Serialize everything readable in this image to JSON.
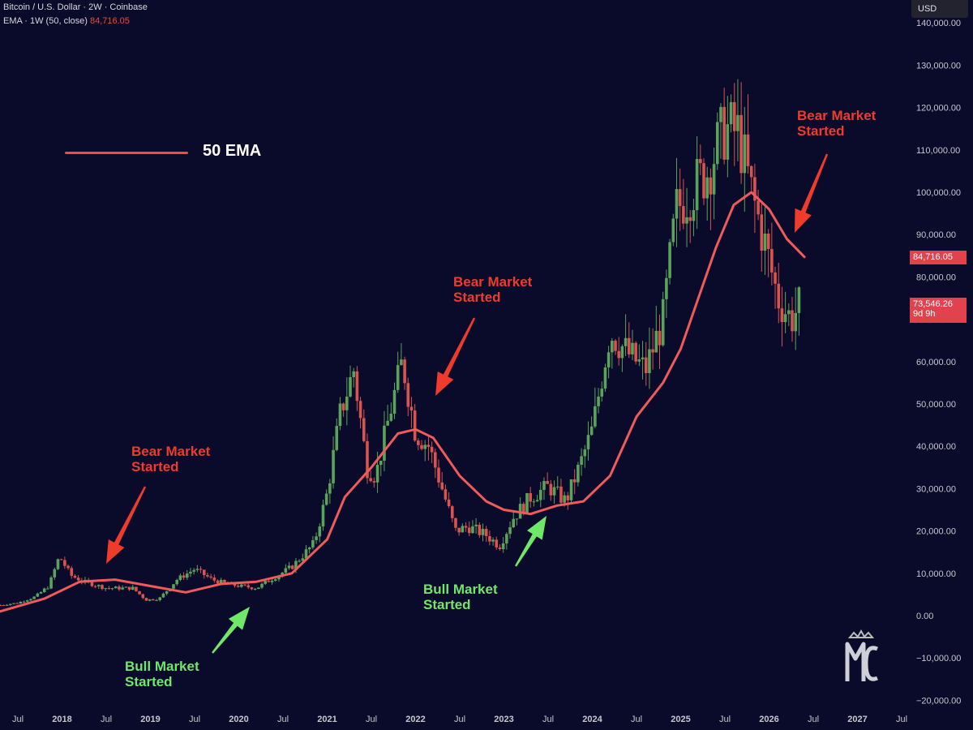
{
  "header": {
    "symbol_line": "Bitcoin / U.S. Dollar · 2W · Coinbase",
    "indicator_line": "EMA · 1W (50, close)",
    "indicator_value": "84,716.05"
  },
  "currency_button": "USD",
  "legend": {
    "label": "50 EMA",
    "color": "#ef4b4b"
  },
  "price_tags": {
    "ema_value": "84,716.05",
    "last_price": "73,546.26",
    "countdown": "9d 9h"
  },
  "annotations": [
    {
      "id": "bear-2018",
      "kind": "bear",
      "lines": [
        "Bear Market",
        "Started"
      ]
    },
    {
      "id": "bull-2020",
      "kind": "bull",
      "lines": [
        "Bull Market",
        "Started"
      ]
    },
    {
      "id": "bear-2022",
      "kind": "bear",
      "lines": [
        "Bear Market",
        "Started"
      ]
    },
    {
      "id": "bull-2023",
      "kind": "bull",
      "lines": [
        "Bull Market",
        "Started"
      ]
    },
    {
      "id": "bear-2025",
      "kind": "bear",
      "lines": [
        "Bear Market",
        "Started"
      ]
    }
  ],
  "colors": {
    "background": "#0a0a2a",
    "up_candle": "#5aa35a",
    "down_candle": "#d9534f",
    "ema_line": "#ef5b5b",
    "bear_text": "#ef3b2c",
    "bull_text": "#6fe86a",
    "axis_text": "#c8c8d0"
  },
  "chart_data": {
    "type": "candlestick",
    "x_axis": {
      "labels": [
        "Jul",
        "2018",
        "Jul",
        "2019",
        "Jul",
        "2020",
        "Jul",
        "2021",
        "Jul",
        "2022",
        "Jul",
        "2023",
        "Jul",
        "2024",
        "Jul",
        "2025",
        "Jul",
        "2026",
        "Jul",
        "2027",
        "Jul"
      ],
      "values": [
        2017.5,
        2018,
        2018.5,
        2019,
        2019.5,
        2020,
        2020.5,
        2021,
        2021.5,
        2022,
        2022.5,
        2023,
        2023.5,
        2024,
        2024.5,
        2025,
        2025.5,
        2026,
        2026.5,
        2027,
        2027.5
      ]
    },
    "y_axis": {
      "ticks": [
        140000,
        130000,
        120000,
        110000,
        100000,
        90000,
        80000,
        60000,
        50000,
        40000,
        30000,
        20000,
        10000,
        0,
        -10000,
        -20000
      ],
      "tick_labels": [
        "140,000.00",
        "130,000.00",
        "120,000.00",
        "110,000.00",
        "100,000.00",
        "90,000.00",
        "80,000.00",
        "60,000.00",
        "50,000.00",
        "40,000.00",
        "30,000.00",
        "20,000.00",
        "10,000.00",
        "0.00",
        "−10,000.00",
        "−20,000.00"
      ],
      "range": [
        -22000,
        145000
      ]
    },
    "price_series_t": [
      2017.3,
      2017.5,
      2017.7,
      2017.85,
      2017.97,
      2018.1,
      2018.25,
      2018.5,
      2018.8,
      2018.95,
      2019.1,
      2019.3,
      2019.5,
      2019.7,
      2019.9,
      2020.2,
      2020.4,
      2020.6,
      2020.85,
      2021.0,
      2021.15,
      2021.3,
      2021.45,
      2021.55,
      2021.7,
      2021.85,
      2022.0,
      2022.15,
      2022.3,
      2022.45,
      2022.6,
      2022.8,
      2022.95,
      2023.1,
      2023.3,
      2023.5,
      2023.7,
      2023.85,
      2024.0,
      2024.2,
      2024.4,
      2024.6,
      2024.8,
      2024.95,
      2025.1,
      2025.3,
      2025.5,
      2025.65,
      2025.8,
      2025.95,
      2026.1,
      2026.25,
      2026.35
    ],
    "price_series_close": [
      2500,
      3000,
      4500,
      7000,
      14000,
      9500,
      8000,
      6500,
      6500,
      3700,
      4000,
      8500,
      11000,
      8500,
      7300,
      6500,
      9000,
      11500,
      17000,
      29000,
      48000,
      58000,
      35000,
      33000,
      47000,
      60000,
      43000,
      40000,
      30000,
      20000,
      21000,
      19000,
      16500,
      23000,
      28000,
      30500,
      27000,
      35000,
      44000,
      67000,
      62000,
      58000,
      70000,
      96000,
      100000,
      105000,
      115000,
      114000,
      100000,
      88000,
      75000,
      70000,
      73546
    ],
    "ema_t": [
      2017.3,
      2017.8,
      2018.2,
      2018.6,
      2019.0,
      2019.4,
      2019.8,
      2020.2,
      2020.6,
      2021.0,
      2021.2,
      2021.5,
      2021.8,
      2022.0,
      2022.2,
      2022.5,
      2022.8,
      2023.0,
      2023.3,
      2023.6,
      2023.9,
      2024.2,
      2024.5,
      2024.8,
      2025.0,
      2025.2,
      2025.4,
      2025.6,
      2025.8,
      2026.0,
      2026.2,
      2026.4
    ],
    "ema_values": [
      1000,
      4000,
      8000,
      8500,
      7000,
      5500,
      7500,
      8000,
      10000,
      18000,
      28000,
      35000,
      43000,
      44000,
      42000,
      33000,
      27000,
      25000,
      24000,
      26000,
      27000,
      33000,
      47000,
      55000,
      63000,
      75000,
      87000,
      97000,
      100000,
      96000,
      89000,
      84716
    ],
    "ema_last": 84716.05,
    "last_price": 73546.26
  }
}
